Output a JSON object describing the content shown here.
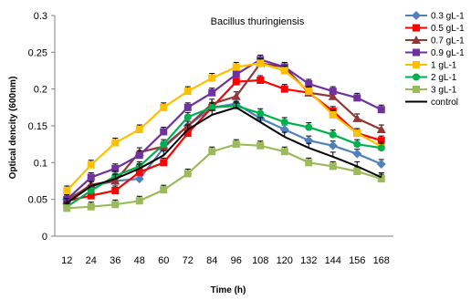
{
  "chart_data": {
    "type": "line",
    "title": "Bacillus thuringiensis",
    "xlabel": "Time (h)",
    "ylabel": "Optical dencity  (600nm)",
    "x": [
      12,
      24,
      36,
      48,
      60,
      72,
      84,
      96,
      108,
      120,
      132,
      144,
      156,
      168
    ],
    "ylim": [
      0,
      0.3
    ],
    "yticks": [
      "0",
      "0.05",
      "0.1",
      "0.15",
      "0.2",
      "0.25",
      "0.3"
    ],
    "grid": false,
    "legend": "right",
    "series": [
      {
        "name": "0.3 gL-1",
        "color": "#4f81bd",
        "marker": "diamond",
        "values": [
          0.05,
          0.068,
          0.075,
          0.078,
          0.12,
          0.15,
          0.175,
          0.18,
          0.16,
          0.145,
          0.13,
          0.123,
          0.112,
          0.098
        ]
      },
      {
        "name": "0.5 gL-1",
        "color": "#ff0000",
        "marker": "square",
        "values": [
          0.048,
          0.055,
          0.062,
          0.087,
          0.1,
          0.14,
          0.175,
          0.21,
          0.212,
          0.2,
          0.195,
          0.17,
          0.14,
          0.13
        ]
      },
      {
        "name": "0.7 gL-1",
        "color": "#943634",
        "marker": "triangle",
        "values": [
          0.048,
          0.07,
          0.075,
          0.114,
          0.122,
          0.15,
          0.18,
          0.19,
          0.235,
          0.23,
          0.195,
          0.19,
          0.16,
          0.145
        ]
      },
      {
        "name": "0.9 gL-1",
        "color": "#7030a0",
        "marker": "square",
        "values": [
          0.05,
          0.08,
          0.092,
          0.11,
          0.142,
          0.175,
          0.195,
          0.22,
          0.24,
          0.23,
          0.207,
          0.197,
          0.188,
          0.172
        ]
      },
      {
        "name": "1 gL-1",
        "color": "#ffc000",
        "marker": "square",
        "values": [
          0.062,
          0.097,
          0.127,
          0.145,
          0.175,
          0.197,
          0.215,
          0.23,
          0.235,
          0.225,
          0.197,
          0.165,
          0.14,
          0.122
        ]
      },
      {
        "name": "2 gL-1",
        "color": "#00b050",
        "marker": "circle",
        "values": [
          0.04,
          0.062,
          0.082,
          0.095,
          0.125,
          0.162,
          0.175,
          0.177,
          0.167,
          0.155,
          0.148,
          0.138,
          0.125,
          0.12
        ]
      },
      {
        "name": "3 gL-1",
        "color": "#9bbb59",
        "marker": "square",
        "values": [
          0.038,
          0.04,
          0.043,
          0.048,
          0.063,
          0.085,
          0.115,
          0.125,
          0.123,
          0.115,
          0.1,
          0.095,
          0.088,
          0.078
        ]
      },
      {
        "name": "control",
        "color": "#000000",
        "marker": "dash",
        "values": [
          0.045,
          0.068,
          0.078,
          0.092,
          0.11,
          0.145,
          0.165,
          0.175,
          0.155,
          0.135,
          0.12,
          0.108,
          0.095,
          0.08
        ]
      }
    ]
  }
}
